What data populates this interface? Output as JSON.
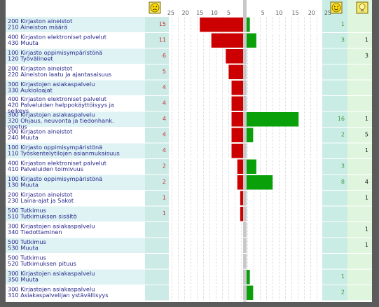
{
  "chart_data": {
    "type": "bar",
    "orientation": "horizontal",
    "diverging": true,
    "header_icons": {
      "negative": "sad-face-icon",
      "positive": "smiley-face-icon",
      "other": "lightbulb-icon"
    },
    "negative_axis_ticks": [
      "25",
      "20",
      "15",
      "10",
      "5"
    ],
    "positive_axis_ticks": [
      "5",
      "10",
      "15",
      "20",
      "25"
    ],
    "xlim": [
      0,
      25
    ],
    "colors": {
      "negative": "#cc0000",
      "positive": "#0aa00a"
    },
    "rows": [
      {
        "group": "200 Kirjaston aineistot",
        "item": "210 Aineiston määrä",
        "negative": 15,
        "positive": 1,
        "other": null
      },
      {
        "group": "400 Kirjaston elektroniset palvelut",
        "item": "430 Muuta",
        "negative": 11,
        "positive": 3,
        "other": 1
      },
      {
        "group": "100 Kirjasto oppimisympäristönä",
        "item": "120 Työvälineet",
        "negative": 6,
        "positive": null,
        "other": 3
      },
      {
        "group": "200 Kirjaston aineistot",
        "item": "220 Aineiston laatu ja ajantasaisuus",
        "negative": 5,
        "positive": null,
        "other": null
      },
      {
        "group": "300 Kirjastojen asiakaspalvelu",
        "item": "330 Aukioloajat",
        "negative": 4,
        "positive": null,
        "other": null
      },
      {
        "group": "400 Kirjaston elektroniset palvelut",
        "item": "420 Palveluiden helppokäyttöisyys ja selkeys",
        "negative": 4,
        "positive": null,
        "other": null
      },
      {
        "group": "300 Kirjastojen asiakaspalvelu",
        "item": "320 Ohjaus, neuvonta ja tiedonhank. opetus",
        "negative": 4,
        "positive": 16,
        "other": 1
      },
      {
        "group": "200 Kirjaston aineistot",
        "item": "240 Muuta",
        "negative": 4,
        "positive": 2,
        "other": 5
      },
      {
        "group": "100 Kirjasto oppimisympäristönä",
        "item": "110 Työskentelytilojen asianmukaisuus",
        "negative": 4,
        "positive": null,
        "other": 1
      },
      {
        "group": "400 Kirjaston elektroniset palvelut",
        "item": "410 Palveluiden toimivuus",
        "negative": 2,
        "positive": 3,
        "other": null
      },
      {
        "group": "100 Kirjasto oppimisympäristönä",
        "item": "130 Muuta",
        "negative": 2,
        "positive": 8,
        "other": 4
      },
      {
        "group": "200 Kirjaston aineistot",
        "item": "230 Laina-ajat ja Sakot",
        "negative": 1,
        "positive": null,
        "other": 1
      },
      {
        "group": "500 Tutkimus",
        "item": "510 Tutkimuksen sisältö",
        "negative": 1,
        "positive": null,
        "other": null
      },
      {
        "group": "300 Kirjastojen asiakaspalvelu",
        "item": "340 Tiedottaminen",
        "negative": null,
        "positive": null,
        "other": 1
      },
      {
        "group": "500 Tutkimus",
        "item": "530 Muuta",
        "negative": null,
        "positive": null,
        "other": 1
      },
      {
        "group": "500 Tutkimus",
        "item": "520 Tutkimuksen pituus",
        "negative": null,
        "positive": null,
        "other": null
      },
      {
        "group": "300 Kirjastojen asiakaspalvelu",
        "item": "350 Muuta",
        "negative": null,
        "positive": 1,
        "other": null
      },
      {
        "group": "300 Kirjastojen asiakaspalvelu",
        "item": "310 Asiakaspalvelijan ystävällisyys",
        "negative": null,
        "positive": 2,
        "other": null
      }
    ]
  }
}
